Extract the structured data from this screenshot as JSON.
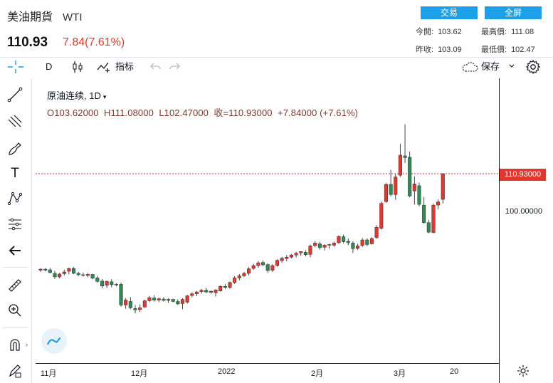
{
  "header": {
    "title": "美油期貨",
    "symbol": "WTI",
    "price": "110.93",
    "change": "7.84(7.61%)",
    "trade_button": "交易",
    "fullscreen_button": "全屏",
    "stats": {
      "open_label": "今開:",
      "open": "103.62",
      "high_label": "最高價:",
      "high": "111.08",
      "prev_label": "昨收:",
      "prev": "103.09",
      "low_label": "最低價:",
      "low": "102.47"
    }
  },
  "toolbar": {
    "interval": "D",
    "indicators_label": "指标",
    "save_label": "保存"
  },
  "legend": {
    "name_interval": "原油连续, 1D",
    "ohlc": "O103.62000  H111.08000  L102.47000  收=110.93000  +7.84000 (+7.61%)"
  },
  "colors": {
    "up": "#e0382e",
    "down": "#2f8a57",
    "accent": "#1da1e6"
  },
  "chart_data": {
    "type": "candlestick",
    "x_tick_labels": [
      "11月",
      "12月",
      "2022",
      "2月",
      "3月",
      "20"
    ],
    "y_tick_labels": [
      "100.00000"
    ],
    "last_price_label": "110.93000",
    "candles": [
      {
        "o": 83.5,
        "h": 84.0,
        "l": 83.0,
        "c": 83.8
      },
      {
        "o": 83.8,
        "h": 84.1,
        "l": 83.2,
        "c": 83.5
      },
      {
        "o": 83.6,
        "h": 84.2,
        "l": 82.6,
        "c": 82.8
      },
      {
        "o": 82.6,
        "h": 83.3,
        "l": 81.0,
        "c": 81.6
      },
      {
        "o": 81.6,
        "h": 82.7,
        "l": 81.2,
        "c": 82.4
      },
      {
        "o": 82.5,
        "h": 83.6,
        "l": 82.0,
        "c": 83.0
      },
      {
        "o": 83.2,
        "h": 84.2,
        "l": 82.3,
        "c": 84.0
      },
      {
        "o": 84.0,
        "h": 84.4,
        "l": 82.4,
        "c": 82.6
      },
      {
        "o": 82.6,
        "h": 83.0,
        "l": 81.8,
        "c": 82.2
      },
      {
        "o": 82.2,
        "h": 82.8,
        "l": 81.7,
        "c": 82.0
      },
      {
        "o": 82.0,
        "h": 82.7,
        "l": 81.5,
        "c": 82.3
      },
      {
        "o": 82.3,
        "h": 82.5,
        "l": 80.9,
        "c": 81.2
      },
      {
        "o": 81.3,
        "h": 81.9,
        "l": 79.9,
        "c": 80.3
      },
      {
        "o": 80.4,
        "h": 81.0,
        "l": 78.3,
        "c": 79.0
      },
      {
        "o": 79.2,
        "h": 80.6,
        "l": 78.4,
        "c": 80.3
      },
      {
        "o": 80.2,
        "h": 80.9,
        "l": 78.6,
        "c": 79.4
      },
      {
        "o": 79.3,
        "h": 79.8,
        "l": 78.9,
        "c": 79.5
      },
      {
        "o": 79.5,
        "h": 80.0,
        "l": 73.1,
        "c": 73.6
      },
      {
        "o": 73.6,
        "h": 75.6,
        "l": 72.5,
        "c": 75.0
      },
      {
        "o": 74.6,
        "h": 75.8,
        "l": 72.4,
        "c": 72.8
      },
      {
        "o": 72.6,
        "h": 73.6,
        "l": 71.2,
        "c": 72.2
      },
      {
        "o": 72.3,
        "h": 73.8,
        "l": 71.6,
        "c": 72.8
      },
      {
        "o": 73.0,
        "h": 75.1,
        "l": 72.8,
        "c": 74.8
      },
      {
        "o": 74.8,
        "h": 76.2,
        "l": 74.4,
        "c": 75.7
      },
      {
        "o": 75.6,
        "h": 76.4,
        "l": 74.6,
        "c": 75.0
      },
      {
        "o": 75.0,
        "h": 75.7,
        "l": 74.4,
        "c": 75.4
      },
      {
        "o": 75.3,
        "h": 75.8,
        "l": 74.6,
        "c": 74.9
      },
      {
        "o": 74.9,
        "h": 75.5,
        "l": 74.2,
        "c": 75.2
      },
      {
        "o": 75.2,
        "h": 75.4,
        "l": 74.4,
        "c": 74.6
      },
      {
        "o": 74.6,
        "h": 75.2,
        "l": 73.6,
        "c": 73.9
      },
      {
        "o": 74.0,
        "h": 75.5,
        "l": 72.4,
        "c": 75.2
      },
      {
        "o": 74.4,
        "h": 76.5,
        "l": 74.0,
        "c": 76.2
      },
      {
        "o": 76.3,
        "h": 77.2,
        "l": 75.8,
        "c": 76.8
      },
      {
        "o": 76.8,
        "h": 77.6,
        "l": 76.1,
        "c": 77.3
      },
      {
        "o": 77.4,
        "h": 78.2,
        "l": 76.8,
        "c": 77.8
      },
      {
        "o": 77.8,
        "h": 78.5,
        "l": 77.0,
        "c": 77.3
      },
      {
        "o": 77.2,
        "h": 77.8,
        "l": 76.8,
        "c": 77.5
      },
      {
        "o": 77.1,
        "h": 78.1,
        "l": 76.0,
        "c": 77.9
      },
      {
        "o": 77.6,
        "h": 79.2,
        "l": 77.4,
        "c": 78.9
      },
      {
        "o": 78.9,
        "h": 79.6,
        "l": 78.2,
        "c": 78.6
      },
      {
        "o": 78.6,
        "h": 80.3,
        "l": 78.2,
        "c": 80.0
      },
      {
        "o": 80.0,
        "h": 81.8,
        "l": 79.6,
        "c": 81.3
      },
      {
        "o": 81.3,
        "h": 82.4,
        "l": 80.6,
        "c": 81.9
      },
      {
        "o": 81.9,
        "h": 83.0,
        "l": 81.5,
        "c": 82.6
      },
      {
        "o": 82.6,
        "h": 84.4,
        "l": 82.0,
        "c": 83.9
      },
      {
        "o": 84.0,
        "h": 85.3,
        "l": 83.6,
        "c": 84.8
      },
      {
        "o": 84.8,
        "h": 86.1,
        "l": 84.2,
        "c": 85.6
      },
      {
        "o": 85.7,
        "h": 86.3,
        "l": 84.7,
        "c": 85.0
      },
      {
        "o": 85.1,
        "h": 85.5,
        "l": 82.7,
        "c": 83.4
      },
      {
        "o": 83.5,
        "h": 85.2,
        "l": 83.0,
        "c": 84.8
      },
      {
        "o": 84.8,
        "h": 86.6,
        "l": 84.5,
        "c": 86.3
      },
      {
        "o": 86.2,
        "h": 87.3,
        "l": 85.6,
        "c": 86.9
      },
      {
        "o": 86.8,
        "h": 87.8,
        "l": 86.0,
        "c": 87.2
      },
      {
        "o": 87.2,
        "h": 88.1,
        "l": 86.9,
        "c": 87.8
      },
      {
        "o": 87.8,
        "h": 88.7,
        "l": 87.1,
        "c": 88.3
      },
      {
        "o": 88.4,
        "h": 88.9,
        "l": 87.6,
        "c": 88.8
      },
      {
        "o": 88.6,
        "h": 89.2,
        "l": 87.4,
        "c": 87.9
      },
      {
        "o": 88.0,
        "h": 90.8,
        "l": 87.2,
        "c": 90.4
      },
      {
        "o": 90.5,
        "h": 91.8,
        "l": 90.0,
        "c": 91.2
      },
      {
        "o": 91.0,
        "h": 91.6,
        "l": 89.3,
        "c": 89.9
      },
      {
        "o": 90.0,
        "h": 90.9,
        "l": 89.1,
        "c": 90.6
      },
      {
        "o": 90.7,
        "h": 91.0,
        "l": 89.6,
        "c": 90.8
      },
      {
        "o": 90.6,
        "h": 91.6,
        "l": 90.2,
        "c": 91.2
      },
      {
        "o": 91.3,
        "h": 93.4,
        "l": 91.0,
        "c": 93.1
      },
      {
        "o": 93.0,
        "h": 93.6,
        "l": 91.2,
        "c": 91.6
      },
      {
        "o": 91.7,
        "h": 92.5,
        "l": 90.6,
        "c": 91.3
      },
      {
        "o": 91.2,
        "h": 91.7,
        "l": 88.4,
        "c": 89.6
      },
      {
        "o": 89.7,
        "h": 91.0,
        "l": 89.3,
        "c": 90.4
      },
      {
        "o": 90.5,
        "h": 92.6,
        "l": 90.1,
        "c": 92.1
      },
      {
        "o": 92.1,
        "h": 92.6,
        "l": 90.3,
        "c": 90.8
      },
      {
        "o": 91.0,
        "h": 92.9,
        "l": 90.8,
        "c": 92.5
      },
      {
        "o": 92.8,
        "h": 96.3,
        "l": 92.4,
        "c": 95.7
      },
      {
        "o": 95.4,
        "h": 103.0,
        "l": 95.0,
        "c": 102.5
      },
      {
        "o": 103.0,
        "h": 108.2,
        "l": 102.6,
        "c": 107.9
      },
      {
        "o": 107.9,
        "h": 112.0,
        "l": 104.5,
        "c": 105.0
      },
      {
        "o": 105.0,
        "h": 110.8,
        "l": 103.5,
        "c": 110.0
      },
      {
        "o": 110.5,
        "h": 119.4,
        "l": 110.0,
        "c": 116.2
      },
      {
        "o": 116.0,
        "h": 125.0,
        "l": 114.0,
        "c": 115.5
      },
      {
        "o": 115.6,
        "h": 117.2,
        "l": 104.2,
        "c": 104.6
      },
      {
        "o": 106.0,
        "h": 110.2,
        "l": 102.2,
        "c": 108.0
      },
      {
        "o": 107.5,
        "h": 108.4,
        "l": 101.6,
        "c": 102.2
      },
      {
        "o": 102.0,
        "h": 104.3,
        "l": 96.8,
        "c": 97.0
      },
      {
        "o": 97.0,
        "h": 97.8,
        "l": 94.0,
        "c": 94.3
      },
      {
        "o": 94.2,
        "h": 102.4,
        "l": 94.0,
        "c": 102.0
      },
      {
        "o": 102.0,
        "h": 103.6,
        "l": 100.8,
        "c": 102.9
      },
      {
        "o": 103.62,
        "h": 111.08,
        "l": 102.47,
        "c": 110.93
      }
    ]
  }
}
